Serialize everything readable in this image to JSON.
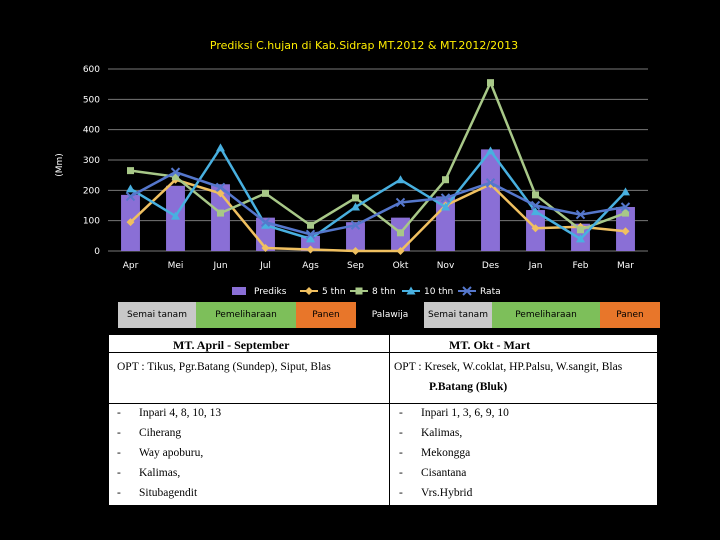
{
  "chart_data": {
    "type": "bar+line",
    "title": "Prediksi C.hujan di Kab.Sidrap MT.2012 & MT.2012/2013",
    "ylabel": "(Mm)",
    "ylim": [
      0,
      600
    ],
    "yticks": [
      0,
      100,
      200,
      300,
      400,
      500,
      600
    ],
    "categories": [
      "Apr",
      "Mei",
      "Jun",
      "Jul",
      "Ags",
      "Sep",
      "Okt",
      "Nov",
      "Des",
      "Jan",
      "Feb",
      "Mar"
    ],
    "bars": {
      "name": "Prediks",
      "color": "#8a6fd6",
      "values": [
        185,
        215,
        220,
        110,
        50,
        95,
        110,
        180,
        335,
        135,
        90,
        145
      ]
    },
    "series": [
      {
        "name": "5 thn",
        "color": "#f0c060",
        "marker": "diamond",
        "values": [
          95,
          235,
          190,
          10,
          5,
          0,
          0,
          150,
          220,
          75,
          80,
          65
        ]
      },
      {
        "name": "8 thn",
        "color": "#a8c888",
        "marker": "square",
        "values": [
          265,
          245,
          125,
          190,
          85,
          175,
          60,
          235,
          555,
          185,
          70,
          125
        ]
      },
      {
        "name": "10 thn",
        "color": "#48b0e0",
        "marker": "triangle",
        "values": [
          205,
          115,
          340,
          85,
          40,
          145,
          235,
          145,
          330,
          130,
          40,
          195
        ]
      },
      {
        "name": "Rata",
        "color": "#5577cc",
        "marker": "cross",
        "values": [
          180,
          260,
          210,
          95,
          55,
          85,
          160,
          175,
          225,
          150,
          120,
          145
        ]
      }
    ],
    "grid": true,
    "legend": "bottom"
  },
  "phases": [
    {
      "label": "Semai tanam",
      "bg": "#c8c8c8"
    },
    {
      "label": "Pemeliharaan",
      "bg": "#7dbf5a"
    },
    {
      "label": "Panen",
      "bg": "#e8762a"
    },
    {
      "label": "Palawija",
      "bg": "#000000"
    },
    {
      "label": "Semai tanam",
      "bg": "#c8c8c8"
    },
    {
      "label": "Pemeliharaan",
      "bg": "#7dbf5a"
    },
    {
      "label": "Panen",
      "bg": "#e8762a"
    }
  ],
  "opt": {
    "left_head": "MT. April - September",
    "right_head": "MT. Okt - Mart",
    "left_opt": "OPT  :  Tikus, Pgr.Batang  (Sundep), Siput, Blas",
    "right_opt": "OPT  : Kresek, W.coklat, HP.Palsu, W.sangit, Blas",
    "right_opt2": "P.Batang (Bluk)",
    "left_varieties": [
      "Inpari  4, 8, 10, 13",
      "Ciherang",
      "Way apoburu,",
      "Kalimas,",
      "Situbagendit"
    ],
    "right_varieties": [
      "Inpari  1, 3, 6, 9, 10",
      "Kalimas,",
      "Mekongga",
      "Cisantana",
      "Vrs.Hybrid"
    ],
    "dash": "-"
  }
}
